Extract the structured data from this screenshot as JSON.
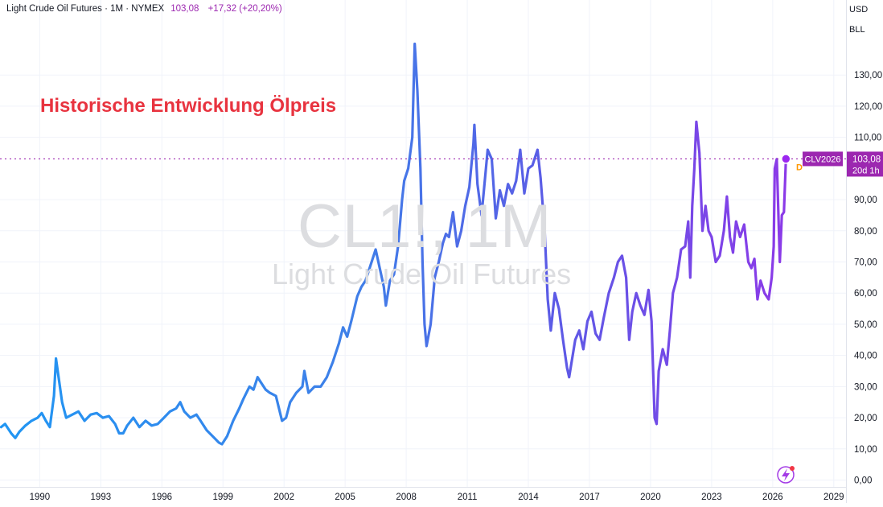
{
  "header": {
    "symbol_line": "Light Crude Oil Futures · 1M · NYMEX",
    "price": "103,08",
    "change": "+17,32 (+20,20%)"
  },
  "units": {
    "currency": "USD",
    "unit": "BLL"
  },
  "annotation": "Historische Entwicklung Ölpreis",
  "watermark": {
    "symbol": "CL1!, 1M",
    "name": "Light Crude Oil Futures"
  },
  "price_label": {
    "contract": "CLV2026",
    "price": "103,08",
    "countdown": "20d 1h",
    "marker": "D"
  },
  "colors": {
    "start": "#2196f3",
    "mid": "#5b5be6",
    "end": "#9c27f0",
    "annotation": "#e8333f",
    "price_tag": "#9c27b0"
  },
  "chart_data": {
    "type": "line",
    "title": "",
    "xlabel": "",
    "ylabel": "",
    "x_ticks": [
      "1990",
      "1993",
      "1996",
      "1999",
      "2002",
      "2005",
      "2008",
      "2011",
      "2014",
      "2017",
      "2020",
      "2023",
      "2026",
      "2029"
    ],
    "y_ticks": [
      "0,00",
      "10,00",
      "20,00",
      "30,00",
      "40,00",
      "50,00",
      "60,00",
      "70,00",
      "80,00",
      "90,00",
      "110,00",
      "120,00",
      "130,00"
    ],
    "xlim": [
      1988.05,
      2029.6
    ],
    "ylim": [
      0,
      140
    ],
    "grid": true,
    "last_price": 103.08,
    "series": [
      {
        "points": [
          [
            1988.1,
            17
          ],
          [
            1988.3,
            18
          ],
          [
            1988.6,
            15
          ],
          [
            1988.8,
            13.5
          ],
          [
            1989.0,
            15.5
          ],
          [
            1989.3,
            17.5
          ],
          [
            1989.6,
            19
          ],
          [
            1989.9,
            20
          ],
          [
            1990.1,
            21.5
          ],
          [
            1990.3,
            19
          ],
          [
            1990.5,
            17
          ],
          [
            1990.7,
            27
          ],
          [
            1990.8,
            39
          ],
          [
            1990.95,
            32
          ],
          [
            1991.1,
            25
          ],
          [
            1991.3,
            20
          ],
          [
            1991.6,
            21
          ],
          [
            1991.9,
            22
          ],
          [
            1992.2,
            19
          ],
          [
            1992.5,
            21
          ],
          [
            1992.8,
            21.5
          ],
          [
            1993.1,
            20
          ],
          [
            1993.4,
            20.5
          ],
          [
            1993.7,
            18
          ],
          [
            1993.9,
            15
          ],
          [
            1994.1,
            15
          ],
          [
            1994.3,
            17.5
          ],
          [
            1994.6,
            20
          ],
          [
            1994.9,
            17
          ],
          [
            1995.2,
            19
          ],
          [
            1995.5,
            17.5
          ],
          [
            1995.8,
            18
          ],
          [
            1996.1,
            20
          ],
          [
            1996.4,
            22
          ],
          [
            1996.7,
            23
          ],
          [
            1996.9,
            25
          ],
          [
            1997.1,
            22
          ],
          [
            1997.4,
            20
          ],
          [
            1997.7,
            21
          ],
          [
            1997.9,
            19
          ],
          [
            1998.2,
            16
          ],
          [
            1998.5,
            14
          ],
          [
            1998.8,
            12
          ],
          [
            1998.95,
            11.5
          ],
          [
            1999.2,
            14
          ],
          [
            1999.5,
            19
          ],
          [
            1999.8,
            23
          ],
          [
            2000.0,
            26
          ],
          [
            2000.3,
            30
          ],
          [
            2000.5,
            29
          ],
          [
            2000.7,
            33
          ],
          [
            2000.9,
            31
          ],
          [
            2001.1,
            29
          ],
          [
            2001.3,
            28
          ],
          [
            2001.6,
            27
          ],
          [
            2001.9,
            19
          ],
          [
            2002.1,
            20
          ],
          [
            2002.3,
            25
          ],
          [
            2002.6,
            28
          ],
          [
            2002.9,
            30
          ],
          [
            2003.0,
            35
          ],
          [
            2003.2,
            28
          ],
          [
            2003.5,
            30
          ],
          [
            2003.8,
            30
          ],
          [
            2004.1,
            33
          ],
          [
            2004.4,
            38
          ],
          [
            2004.7,
            44
          ],
          [
            2004.9,
            49
          ],
          [
            2005.1,
            46
          ],
          [
            2005.3,
            51
          ],
          [
            2005.6,
            59
          ],
          [
            2005.8,
            62
          ],
          [
            2006.0,
            64
          ],
          [
            2006.3,
            70
          ],
          [
            2006.5,
            74
          ],
          [
            2006.7,
            68
          ],
          [
            2006.9,
            62
          ],
          [
            2007.0,
            56
          ],
          [
            2007.2,
            64
          ],
          [
            2007.4,
            66
          ],
          [
            2007.6,
            75
          ],
          [
            2007.8,
            90
          ],
          [
            2007.9,
            96
          ],
          [
            2008.1,
            100
          ],
          [
            2008.3,
            110
          ],
          [
            2008.42,
            140
          ],
          [
            2008.55,
            125
          ],
          [
            2008.7,
            100
          ],
          [
            2008.8,
            70
          ],
          [
            2008.9,
            50
          ],
          [
            2009.0,
            43
          ],
          [
            2009.2,
            50
          ],
          [
            2009.4,
            65
          ],
          [
            2009.6,
            70
          ],
          [
            2009.8,
            76
          ],
          [
            2009.95,
            79
          ],
          [
            2010.1,
            78
          ],
          [
            2010.3,
            86
          ],
          [
            2010.5,
            75
          ],
          [
            2010.7,
            80
          ],
          [
            2010.9,
            88
          ],
          [
            2011.1,
            94
          ],
          [
            2011.3,
            108
          ],
          [
            2011.35,
            114
          ],
          [
            2011.5,
            95
          ],
          [
            2011.7,
            85
          ],
          [
            2011.9,
            99
          ],
          [
            2012.0,
            106
          ],
          [
            2012.2,
            103
          ],
          [
            2012.4,
            84
          ],
          [
            2012.6,
            93
          ],
          [
            2012.8,
            88
          ],
          [
            2013.0,
            95
          ],
          [
            2013.2,
            92
          ],
          [
            2013.4,
            96
          ],
          [
            2013.6,
            106
          ],
          [
            2013.8,
            92
          ],
          [
            2014.0,
            100
          ],
          [
            2014.2,
            101
          ],
          [
            2014.45,
            106
          ],
          [
            2014.6,
            97
          ],
          [
            2014.8,
            80
          ],
          [
            2014.95,
            58
          ],
          [
            2015.1,
            48
          ],
          [
            2015.3,
            60
          ],
          [
            2015.5,
            55
          ],
          [
            2015.7,
            45
          ],
          [
            2015.9,
            36
          ],
          [
            2016.0,
            33
          ],
          [
            2016.3,
            45
          ],
          [
            2016.5,
            48
          ],
          [
            2016.7,
            42
          ],
          [
            2016.9,
            51
          ],
          [
            2017.1,
            54
          ],
          [
            2017.3,
            47
          ],
          [
            2017.5,
            45
          ],
          [
            2017.7,
            52
          ],
          [
            2017.95,
            60
          ],
          [
            2018.2,
            65
          ],
          [
            2018.4,
            70
          ],
          [
            2018.6,
            72
          ],
          [
            2018.8,
            65
          ],
          [
            2018.95,
            45
          ],
          [
            2019.1,
            54
          ],
          [
            2019.3,
            60
          ],
          [
            2019.5,
            56
          ],
          [
            2019.7,
            53
          ],
          [
            2019.9,
            61
          ],
          [
            2020.05,
            51
          ],
          [
            2020.2,
            20
          ],
          [
            2020.3,
            18
          ],
          [
            2020.4,
            35
          ],
          [
            2020.6,
            42
          ],
          [
            2020.8,
            37
          ],
          [
            2020.95,
            48
          ],
          [
            2021.1,
            60
          ],
          [
            2021.3,
            65
          ],
          [
            2021.5,
            74
          ],
          [
            2021.7,
            75
          ],
          [
            2021.85,
            83
          ],
          [
            2021.95,
            65
          ],
          [
            2022.05,
            88
          ],
          [
            2022.15,
            100
          ],
          [
            2022.25,
            115
          ],
          [
            2022.4,
            105
          ],
          [
            2022.55,
            80
          ],
          [
            2022.7,
            88
          ],
          [
            2022.85,
            80
          ],
          [
            2023.0,
            78
          ],
          [
            2023.2,
            70
          ],
          [
            2023.4,
            72
          ],
          [
            2023.6,
            80
          ],
          [
            2023.75,
            91
          ],
          [
            2023.9,
            78
          ],
          [
            2024.05,
            73
          ],
          [
            2024.2,
            83
          ],
          [
            2024.4,
            78
          ],
          [
            2024.6,
            82
          ],
          [
            2024.8,
            70
          ],
          [
            2024.95,
            68
          ],
          [
            2025.1,
            71
          ],
          [
            2025.25,
            58
          ],
          [
            2025.4,
            64
          ],
          [
            2025.6,
            60
          ],
          [
            2025.8,
            58
          ],
          [
            2025.95,
            65
          ],
          [
            2026.05,
            75
          ],
          [
            2026.1,
            100
          ],
          [
            2026.2,
            103
          ],
          [
            2026.35,
            70
          ],
          [
            2026.45,
            85
          ],
          [
            2026.55,
            86
          ],
          [
            2026.65,
            103.08
          ]
        ]
      }
    ]
  }
}
